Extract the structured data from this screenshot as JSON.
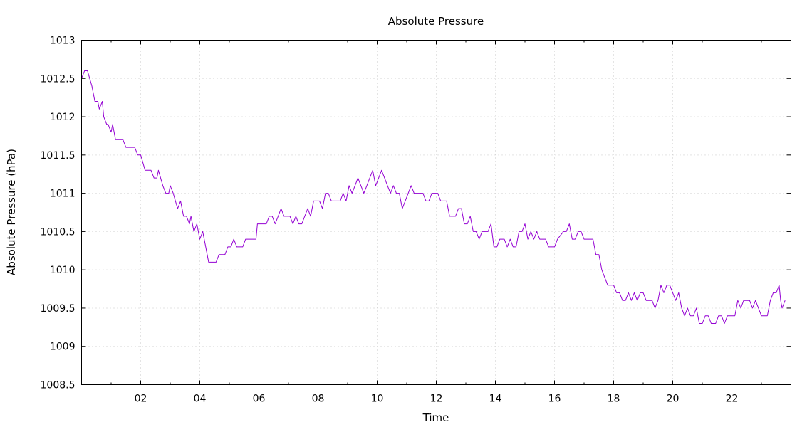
{
  "chart_data": {
    "type": "line",
    "title": "Absolute Pressure",
    "xlabel": "Time",
    "ylabel": "Absolute Pressure (hPa)",
    "xlim": [
      0,
      24
    ],
    "ylim": [
      1008.5,
      1013
    ],
    "x_ticks": [
      {
        "value": 2,
        "label": "02"
      },
      {
        "value": 4,
        "label": "04"
      },
      {
        "value": 6,
        "label": "06"
      },
      {
        "value": 8,
        "label": "08"
      },
      {
        "value": 10,
        "label": "10"
      },
      {
        "value": 12,
        "label": "12"
      },
      {
        "value": 14,
        "label": "14"
      },
      {
        "value": 16,
        "label": "16"
      },
      {
        "value": 18,
        "label": "18"
      },
      {
        "value": 20,
        "label": "20"
      },
      {
        "value": 22,
        "label": "22"
      }
    ],
    "x_minor_ticks": [
      1,
      3,
      5,
      7,
      9,
      11,
      13,
      15,
      17,
      19,
      21,
      23
    ],
    "y_ticks": [
      {
        "value": 1008.5,
        "label": "1008.5"
      },
      {
        "value": 1009,
        "label": "1009"
      },
      {
        "value": 1009.5,
        "label": "1009.5"
      },
      {
        "value": 1010,
        "label": "1010"
      },
      {
        "value": 1010.5,
        "label": "1010.5"
      },
      {
        "value": 1011,
        "label": "1011"
      },
      {
        "value": 1011.5,
        "label": "1011.5"
      },
      {
        "value": 1012,
        "label": "1012"
      },
      {
        "value": 1012.5,
        "label": "1012.5"
      },
      {
        "value": 1013,
        "label": "1013"
      }
    ],
    "grid": true,
    "series": [
      {
        "color": "#9400d3",
        "points": [
          [
            0.0,
            1012.5
          ],
          [
            0.1,
            1012.6
          ],
          [
            0.2,
            1012.6
          ],
          [
            0.35,
            1012.4
          ],
          [
            0.45,
            1012.2
          ],
          [
            0.55,
            1012.2
          ],
          [
            0.6,
            1012.1
          ],
          [
            0.7,
            1012.2
          ],
          [
            0.75,
            1012.0
          ],
          [
            0.85,
            1011.9
          ],
          [
            0.9,
            1011.9
          ],
          [
            1.0,
            1011.8
          ],
          [
            1.05,
            1011.9
          ],
          [
            1.15,
            1011.7
          ],
          [
            1.4,
            1011.7
          ],
          [
            1.5,
            1011.6
          ],
          [
            1.8,
            1011.6
          ],
          [
            1.9,
            1011.5
          ],
          [
            2.0,
            1011.5
          ],
          [
            2.15,
            1011.3
          ],
          [
            2.35,
            1011.3
          ],
          [
            2.45,
            1011.2
          ],
          [
            2.55,
            1011.2
          ],
          [
            2.6,
            1011.3
          ],
          [
            2.75,
            1011.1
          ],
          [
            2.85,
            1011.0
          ],
          [
            2.95,
            1011.0
          ],
          [
            3.0,
            1011.1
          ],
          [
            3.1,
            1011.0
          ],
          [
            3.25,
            1010.8
          ],
          [
            3.35,
            1010.9
          ],
          [
            3.45,
            1010.7
          ],
          [
            3.55,
            1010.7
          ],
          [
            3.65,
            1010.6
          ],
          [
            3.7,
            1010.7
          ],
          [
            3.8,
            1010.5
          ],
          [
            3.9,
            1010.6
          ],
          [
            4.0,
            1010.4
          ],
          [
            4.1,
            1010.5
          ],
          [
            4.2,
            1010.3
          ],
          [
            4.3,
            1010.1
          ],
          [
            4.55,
            1010.1
          ],
          [
            4.65,
            1010.2
          ],
          [
            4.85,
            1010.2
          ],
          [
            4.95,
            1010.3
          ],
          [
            5.05,
            1010.3
          ],
          [
            5.15,
            1010.4
          ],
          [
            5.25,
            1010.3
          ],
          [
            5.45,
            1010.3
          ],
          [
            5.55,
            1010.4
          ],
          [
            5.9,
            1010.4
          ],
          [
            5.95,
            1010.6
          ],
          [
            6.25,
            1010.6
          ],
          [
            6.35,
            1010.7
          ],
          [
            6.45,
            1010.7
          ],
          [
            6.55,
            1010.6
          ],
          [
            6.65,
            1010.7
          ],
          [
            6.75,
            1010.8
          ],
          [
            6.85,
            1010.7
          ],
          [
            7.05,
            1010.7
          ],
          [
            7.15,
            1010.6
          ],
          [
            7.25,
            1010.7
          ],
          [
            7.35,
            1010.6
          ],
          [
            7.45,
            1010.6
          ],
          [
            7.55,
            1010.7
          ],
          [
            7.65,
            1010.8
          ],
          [
            7.75,
            1010.7
          ],
          [
            7.85,
            1010.9
          ],
          [
            8.05,
            1010.9
          ],
          [
            8.15,
            1010.8
          ],
          [
            8.25,
            1011.0
          ],
          [
            8.35,
            1011.0
          ],
          [
            8.45,
            1010.9
          ],
          [
            8.75,
            1010.9
          ],
          [
            8.85,
            1011.0
          ],
          [
            8.95,
            1010.9
          ],
          [
            9.05,
            1011.1
          ],
          [
            9.15,
            1011.0
          ],
          [
            9.25,
            1011.1
          ],
          [
            9.35,
            1011.2
          ],
          [
            9.45,
            1011.1
          ],
          [
            9.55,
            1011.0
          ],
          [
            9.65,
            1011.1
          ],
          [
            9.75,
            1011.2
          ],
          [
            9.85,
            1011.3
          ],
          [
            9.95,
            1011.1
          ],
          [
            10.05,
            1011.2
          ],
          [
            10.15,
            1011.3
          ],
          [
            10.25,
            1011.2
          ],
          [
            10.35,
            1011.1
          ],
          [
            10.45,
            1011.0
          ],
          [
            10.55,
            1011.1
          ],
          [
            10.65,
            1011.0
          ],
          [
            10.75,
            1011.0
          ],
          [
            10.85,
            1010.8
          ],
          [
            10.95,
            1010.9
          ],
          [
            11.05,
            1011.0
          ],
          [
            11.15,
            1011.1
          ],
          [
            11.25,
            1011.0
          ],
          [
            11.55,
            1011.0
          ],
          [
            11.65,
            1010.9
          ],
          [
            11.75,
            1010.9
          ],
          [
            11.85,
            1011.0
          ],
          [
            12.05,
            1011.0
          ],
          [
            12.15,
            1010.9
          ],
          [
            12.35,
            1010.9
          ],
          [
            12.45,
            1010.7
          ],
          [
            12.65,
            1010.7
          ],
          [
            12.75,
            1010.8
          ],
          [
            12.85,
            1010.8
          ],
          [
            12.95,
            1010.6
          ],
          [
            13.05,
            1010.6
          ],
          [
            13.15,
            1010.7
          ],
          [
            13.25,
            1010.5
          ],
          [
            13.35,
            1010.5
          ],
          [
            13.45,
            1010.4
          ],
          [
            13.55,
            1010.5
          ],
          [
            13.75,
            1010.5
          ],
          [
            13.85,
            1010.6
          ],
          [
            13.95,
            1010.3
          ],
          [
            14.05,
            1010.3
          ],
          [
            14.15,
            1010.4
          ],
          [
            14.3,
            1010.4
          ],
          [
            14.4,
            1010.3
          ],
          [
            14.5,
            1010.4
          ],
          [
            14.6,
            1010.3
          ],
          [
            14.7,
            1010.3
          ],
          [
            14.8,
            1010.5
          ],
          [
            14.9,
            1010.5
          ],
          [
            15.0,
            1010.6
          ],
          [
            15.1,
            1010.4
          ],
          [
            15.2,
            1010.5
          ],
          [
            15.3,
            1010.4
          ],
          [
            15.4,
            1010.5
          ],
          [
            15.5,
            1010.4
          ],
          [
            15.7,
            1010.4
          ],
          [
            15.8,
            1010.3
          ],
          [
            16.0,
            1010.3
          ],
          [
            16.1,
            1010.4
          ],
          [
            16.3,
            1010.5
          ],
          [
            16.4,
            1010.5
          ],
          [
            16.5,
            1010.6
          ],
          [
            16.6,
            1010.4
          ],
          [
            16.7,
            1010.4
          ],
          [
            16.8,
            1010.5
          ],
          [
            16.9,
            1010.5
          ],
          [
            17.0,
            1010.4
          ],
          [
            17.3,
            1010.4
          ],
          [
            17.4,
            1010.2
          ],
          [
            17.5,
            1010.2
          ],
          [
            17.6,
            1010.0
          ],
          [
            17.7,
            1009.9
          ],
          [
            17.8,
            1009.8
          ],
          [
            18.0,
            1009.8
          ],
          [
            18.1,
            1009.7
          ],
          [
            18.2,
            1009.7
          ],
          [
            18.3,
            1009.6
          ],
          [
            18.4,
            1009.6
          ],
          [
            18.5,
            1009.7
          ],
          [
            18.6,
            1009.6
          ],
          [
            18.7,
            1009.7
          ],
          [
            18.8,
            1009.6
          ],
          [
            18.9,
            1009.7
          ],
          [
            19.0,
            1009.7
          ],
          [
            19.1,
            1009.6
          ],
          [
            19.3,
            1009.6
          ],
          [
            19.4,
            1009.5
          ],
          [
            19.5,
            1009.6
          ],
          [
            19.6,
            1009.8
          ],
          [
            19.7,
            1009.7
          ],
          [
            19.8,
            1009.8
          ],
          [
            19.9,
            1009.8
          ],
          [
            20.0,
            1009.7
          ],
          [
            20.1,
            1009.6
          ],
          [
            20.2,
            1009.7
          ],
          [
            20.3,
            1009.5
          ],
          [
            20.4,
            1009.4
          ],
          [
            20.5,
            1009.5
          ],
          [
            20.6,
            1009.4
          ],
          [
            20.7,
            1009.4
          ],
          [
            20.8,
            1009.5
          ],
          [
            20.9,
            1009.3
          ],
          [
            21.0,
            1009.3
          ],
          [
            21.1,
            1009.4
          ],
          [
            21.2,
            1009.4
          ],
          [
            21.3,
            1009.3
          ],
          [
            21.45,
            1009.3
          ],
          [
            21.55,
            1009.4
          ],
          [
            21.65,
            1009.4
          ],
          [
            21.75,
            1009.3
          ],
          [
            21.85,
            1009.4
          ],
          [
            22.1,
            1009.4
          ],
          [
            22.2,
            1009.6
          ],
          [
            22.3,
            1009.5
          ],
          [
            22.4,
            1009.6
          ],
          [
            22.6,
            1009.6
          ],
          [
            22.7,
            1009.5
          ],
          [
            22.8,
            1009.6
          ],
          [
            22.9,
            1009.5
          ],
          [
            23.0,
            1009.4
          ],
          [
            23.2,
            1009.4
          ],
          [
            23.3,
            1009.6
          ],
          [
            23.4,
            1009.7
          ],
          [
            23.5,
            1009.7
          ],
          [
            23.6,
            1009.8
          ],
          [
            23.65,
            1009.6
          ],
          [
            23.7,
            1009.5
          ],
          [
            23.8,
            1009.6
          ]
        ]
      }
    ]
  }
}
